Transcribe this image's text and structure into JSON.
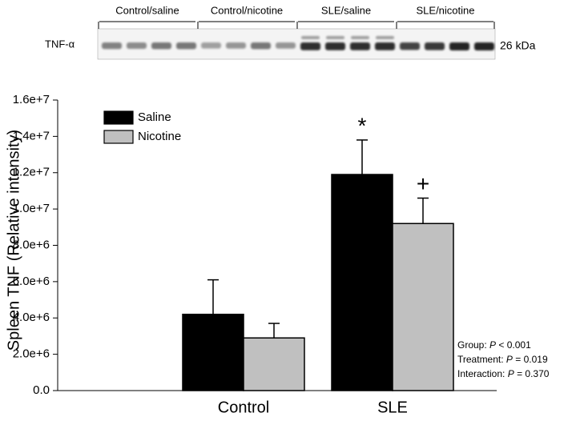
{
  "blot": {
    "protein": "TNF-α",
    "size": "26 kDa",
    "groups": [
      "Control/saline",
      "Control/nicotine",
      "SLE/saline",
      "SLE/nicotine"
    ]
  },
  "chart_data": {
    "type": "bar",
    "y_label": "Spleen TNF (Relative intensity)",
    "categories": [
      "Control",
      "SLE"
    ],
    "series": [
      {
        "name": "Saline",
        "color": "#000000",
        "values": [
          4200000,
          11900000
        ],
        "errors": [
          1900000,
          1900000
        ]
      },
      {
        "name": "Nicotine",
        "color": "#c0c0c0",
        "values": [
          2900000,
          9200000
        ],
        "errors": [
          800000,
          1400000
        ]
      }
    ],
    "ylim": [
      0,
      16000000
    ],
    "yticks": [
      {
        "value": 0,
        "label": "0.0"
      },
      {
        "value": 2000000,
        "label": "2.0e+6"
      },
      {
        "value": 4000000,
        "label": "4.0e+6"
      },
      {
        "value": 6000000,
        "label": "6.0e+6"
      },
      {
        "value": 8000000,
        "label": "8.0e+6"
      },
      {
        "value": 10000000,
        "label": "1.0e+7"
      },
      {
        "value": 12000000,
        "label": "1.2e+7"
      },
      {
        "value": 14000000,
        "label": "1.4e+7"
      },
      {
        "value": 16000000,
        "label": "1.6e+7"
      }
    ],
    "legend": "upper left",
    "annotations": [
      {
        "series": 0,
        "category": 1,
        "text": "*"
      },
      {
        "series": 1,
        "category": 1,
        "text": "+"
      }
    ],
    "stats": [
      {
        "label": "Group:",
        "p": "P",
        "result": "< 0.001"
      },
      {
        "label": "Treatment:",
        "p": "P",
        "result": "= 0.019"
      },
      {
        "label": "Interaction:",
        "p": "P",
        "result": "= 0.370"
      }
    ]
  }
}
